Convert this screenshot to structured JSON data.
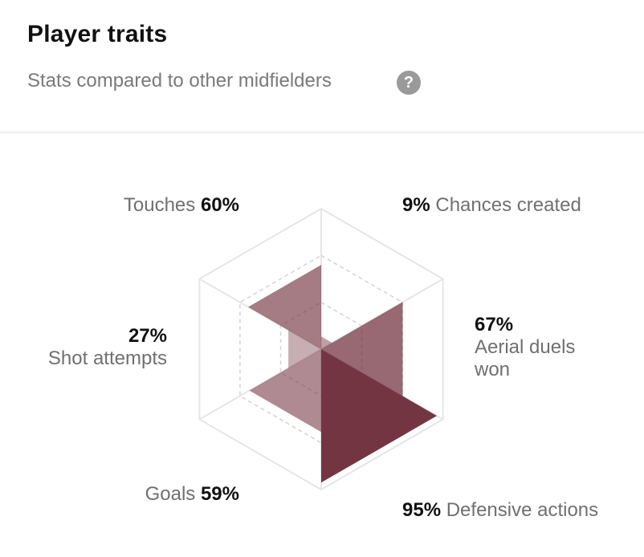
{
  "header": {
    "title": "Player traits",
    "subtitle": "Stats compared to other midfielders",
    "help_icon": "question-mark-icon"
  },
  "chart_data": {
    "type": "radar",
    "title": "Player traits",
    "subtitle": "Stats compared to other midfielders",
    "range": [
      0,
      100
    ],
    "rings": [
      25,
      50,
      75,
      100
    ],
    "colors": {
      "Chances created": "#6d2a38",
      "Aerial duels won": "#6d2a38",
      "Defensive actions": "#6d2a38",
      "Goals": "#6d2a38",
      "Shot attempts": "#6d2a38",
      "Touches": "#6d2a38"
    },
    "categories": [
      "Chances created",
      "Aerial duels won",
      "Defensive actions",
      "Goals",
      "Shot attempts",
      "Touches"
    ],
    "values": [
      9,
      67,
      95,
      59,
      27,
      60
    ],
    "labels": [
      {
        "name": "Chances created",
        "value": "9%"
      },
      {
        "name": "Aerial duels won",
        "value": "67%"
      },
      {
        "name": "Defensive actions",
        "value": "95%"
      },
      {
        "name": "Goals",
        "value": "59%"
      },
      {
        "name": "Shot attempts",
        "value": "27%"
      },
      {
        "name": "Touches",
        "value": "60%"
      }
    ]
  }
}
